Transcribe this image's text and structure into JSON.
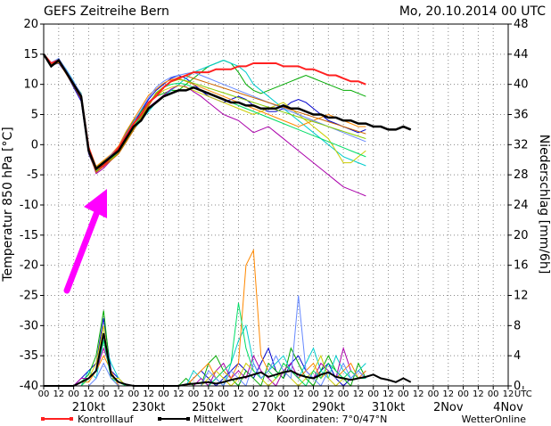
{
  "chart_data": {
    "type": "line",
    "title": "GEFS Zeitreihe Bern",
    "date_label": "Mo, 20.10.2014 00 UTC",
    "ylabel_left": "Temperatur 850 hPa [°C]",
    "ylabel_right": "Niederschlag [mm/6h]",
    "ylim_left": [
      -40,
      20
    ],
    "ylim_right": [
      0,
      48
    ],
    "yticks_left": [
      20,
      15,
      10,
      5,
      0,
      -5,
      -10,
      -15,
      -20,
      -25,
      -30,
      -35,
      -40
    ],
    "yticks_right": [
      48,
      44,
      40,
      36,
      32,
      28,
      24,
      20,
      16,
      12,
      8,
      4,
      0
    ],
    "x_step_hours": 6,
    "x_range_steps": [
      0,
      62
    ],
    "x_hour_labels": [
      "00",
      "12",
      "00",
      "12",
      "00",
      "12",
      "00",
      "12",
      "00",
      "12",
      "00",
      "12",
      "00",
      "12",
      "00",
      "12",
      "00",
      "12",
      "00",
      "12",
      "00",
      "12",
      "00",
      "12",
      "00",
      "12",
      "00",
      "12",
      "00",
      "12",
      "00",
      "12",
      "UTC"
    ],
    "x_date_labels": [
      {
        "text": "210kt",
        "step": 6
      },
      {
        "text": "230kt",
        "step": 14
      },
      {
        "text": "250kt",
        "step": 22
      },
      {
        "text": "270kt",
        "step": 30
      },
      {
        "text": "290kt",
        "step": 38
      },
      {
        "text": "310kt",
        "step": 46
      },
      {
        "text": "2Nov",
        "step": 54
      },
      {
        "text": "4Nov",
        "step": 62
      }
    ],
    "legend": {
      "control_label": "Kontrolllauf",
      "control_color": "#ff2020",
      "mean_label": "Mittelwert",
      "mean_color": "#000000",
      "coords_label": "Koordinaten: 7°0/47°N",
      "brand": "WetterOnline"
    },
    "annotation_arrow_color": "#ff00ff",
    "ensemble_colors": [
      "#ff2020",
      "#0000cc",
      "#00aa00",
      "#00cccc",
      "#aa00aa",
      "#cccc00",
      "#ff8800",
      "#00dd66",
      "#6688ff",
      "#88cc00",
      "#cc6600",
      "#008888",
      "#ff66cc",
      "#999900",
      "#3399ff",
      "#66cc33",
      "#996633",
      "#cc00cc",
      "#33cccc",
      "#aaaa33"
    ],
    "temperature_mean": [
      15,
      13,
      14,
      12,
      10,
      8,
      -1,
      -4,
      -3,
      -2,
      -1,
      1,
      3,
      4,
      6,
      7,
      8,
      8.5,
      9,
      9,
      9.5,
      9,
      8.5,
      8,
      7.5,
      7,
      7,
      6.5,
      6.5,
      6,
      6,
      6,
      6.5,
      6,
      6,
      5.5,
      5,
      5,
      4.5,
      4.5,
      4,
      4,
      3.5,
      3.5,
      3,
      3,
      2.5,
      2.5,
      3,
      2.5
    ],
    "temperature_control": [
      15,
      13.5,
      14,
      12,
      10,
      8,
      -0.5,
      -4,
      -3.5,
      -2,
      -0.5,
      1.5,
      3.5,
      5,
      7,
      8,
      9.5,
      10.5,
      11,
      11.5,
      12,
      12,
      12,
      12.5,
      12.5,
      12.5,
      13,
      13,
      13.5,
      13.5,
      13.5,
      13.5,
      13,
      13,
      13,
      12.5,
      12.5,
      12,
      11.5,
      11.5,
      11,
      10.5,
      10.5,
      10
    ],
    "temperature_members": [
      [
        15,
        13.2,
        13.5,
        11.8,
        9.5,
        7.2,
        -1.5,
        -4.5,
        -3.5,
        -2.5,
        -1,
        1.5,
        3.5,
        5.5,
        7.5,
        9,
        10,
        11,
        11.5,
        11,
        10,
        9,
        8,
        7.5,
        7,
        7.5,
        8,
        7.5,
        6.5,
        6,
        5.5,
        5.5,
        6,
        7,
        7.5,
        7,
        6,
        5,
        4,
        3.5,
        3,
        2.5,
        2,
        2.5
      ],
      [
        15,
        13.5,
        14,
        12.2,
        10.2,
        8.5,
        -0.5,
        -3.8,
        -2.8,
        -1.8,
        -0.5,
        2,
        4,
        5.5,
        7,
        8,
        8.5,
        9,
        9,
        10,
        11,
        12,
        13,
        13.5,
        14,
        13.5,
        12,
        10,
        9,
        8.5,
        9,
        9.5,
        10,
        10.5,
        11,
        11.5,
        11,
        10.5,
        10,
        9.5,
        9,
        9,
        8.5,
        8
      ],
      [
        15,
        13,
        14.2,
        12.5,
        10.5,
        8,
        -1.2,
        -4.2,
        -3.2,
        -2.2,
        -1.2,
        0.5,
        2.5,
        4,
        5.5,
        7,
        8,
        9,
        10,
        11,
        12,
        12.5,
        13,
        13.5,
        14,
        13.5,
        13,
        12,
        10,
        9,
        8,
        7,
        6,
        5,
        4,
        3,
        2,
        1,
        0,
        -1,
        -2,
        -2.5,
        -3,
        -3.5
      ],
      [
        15,
        13.3,
        13.8,
        11.9,
        9.8,
        7.5,
        -1,
        -4.8,
        -3.9,
        -2.6,
        -1.3,
        0.8,
        2.8,
        4.8,
        6.2,
        7.2,
        8.2,
        9.2,
        9.8,
        9.6,
        8.8,
        8,
        7,
        6,
        5,
        4.5,
        4,
        3,
        2,
        2.5,
        3,
        2,
        1,
        0,
        -1,
        -2,
        -3,
        -4,
        -5,
        -6,
        -7,
        -7.5,
        -8,
        -8.5
      ],
      [
        15,
        13.1,
        13.6,
        12.1,
        9.9,
        7.9,
        -0.8,
        -4.1,
        -3.1,
        -1.9,
        -0.6,
        1.2,
        3.2,
        5.2,
        6.8,
        8,
        9,
        9.5,
        9.8,
        9.5,
        9,
        8.5,
        8,
        7.5,
        7,
        6.5,
        6,
        5.5,
        5,
        5.5,
        6,
        6.5,
        7,
        6,
        5,
        4,
        3,
        2,
        1,
        -1,
        -3,
        -3,
        -2,
        -1
      ],
      [
        15,
        13.4,
        14.1,
        12.3,
        10.3,
        8.2,
        -0.3,
        -3.6,
        -2.6,
        -1.6,
        -0.2,
        2.2,
        4.2,
        6.2,
        8.2,
        9.2,
        10.2,
        10.8,
        11,
        10.5,
        10,
        9.5,
        9,
        8.5,
        8,
        7.5,
        7,
        6.5,
        6,
        5.5,
        5,
        4.5,
        4,
        3.5,
        3,
        3.5,
        4,
        4.5,
        5,
        4.5,
        4,
        3.5,
        3,
        3
      ],
      [
        15,
        13.2,
        13.9,
        12,
        10,
        8.1,
        -0.9,
        -4.3,
        -3.3,
        -2.3,
        -1.1,
        0.9,
        2.9,
        4.9,
        6.9,
        8.5,
        9.5,
        10,
        10.2,
        10,
        9.5,
        9,
        8.5,
        8,
        7.5,
        7,
        6.5,
        6,
        5.5,
        5,
        4.5,
        4,
        3.5,
        3,
        2.5,
        2,
        1.5,
        1,
        0.5,
        0,
        -0.5,
        -1,
        -1.5,
        -2
      ],
      [
        15,
        13.6,
        14.3,
        12.4,
        10.4,
        8.4,
        -0.6,
        -3.9,
        -2.9,
        -1.7,
        -0.4,
        1.8,
        3.8,
        5.8,
        7.8,
        9.5,
        10.5,
        11.2,
        11.5,
        11.8,
        12,
        11.5,
        11,
        10.5,
        10,
        9.5,
        9,
        8.5,
        8,
        7.5,
        7,
        6.5,
        6,
        5.5,
        5,
        4.5,
        4,
        3.5,
        3,
        2.5,
        2,
        1.5,
        1,
        0.5
      ],
      [
        15,
        13.3,
        14,
        12.1,
        10.1,
        7.8,
        -1.1,
        -4.4,
        -3.4,
        -2.4,
        -1.4,
        0.6,
        2.6,
        4.6,
        6.6,
        8.6,
        9.6,
        10.4,
        10.8,
        10.6,
        10.2,
        9.8,
        9.4,
        9,
        8.6,
        8.2,
        7.8,
        7.4,
        7,
        6.6,
        6.2,
        5.8,
        5.4,
        5,
        4.6,
        4.2,
        3.8,
        3.4,
        3,
        2.6,
        2.2,
        1.8,
        1.4,
        1
      ],
      [
        15,
        13,
        13.7,
        11.7,
        9.7,
        7.6,
        -1.3,
        -4.6,
        -3.6,
        -2.6,
        -1.5,
        0.4,
        2.4,
        4.4,
        6.4,
        8.4,
        9.4,
        10.6,
        11.2,
        11.4,
        11,
        10.6,
        10.2,
        9.8,
        9.4,
        9,
        8.6,
        8.2,
        7.8,
        7.4,
        7,
        6.6,
        6.2,
        5.8,
        5.4,
        5,
        4.6,
        4.2,
        3.8,
        3.4,
        3,
        2.6,
        2.2,
        1.8
      ]
    ],
    "precip_mean": [
      0,
      0,
      0,
      0,
      0,
      0.5,
      1,
      2,
      7,
      1.5,
      0.5,
      0.2,
      0,
      0,
      0,
      0,
      0,
      0,
      0,
      0.2,
      0.3,
      0.4,
      0.5,
      0.3,
      0.5,
      0.8,
      1,
      1.2,
      1.5,
      1.8,
      1.2,
      1.5,
      1.8,
      2,
      1.5,
      1.2,
      1,
      1.5,
      1.8,
      1.2,
      1,
      0.8,
      1,
      1.2,
      1.5,
      1,
      0.8,
      0.5,
      1,
      0.5
    ],
    "precip_members": [
      [
        0,
        0,
        0,
        0,
        0,
        1,
        2,
        3,
        9,
        2,
        1,
        0,
        0,
        0,
        0,
        0,
        0,
        0,
        0,
        0,
        1,
        2,
        1,
        0,
        1,
        2,
        3,
        2,
        1,
        3,
        5,
        2,
        1,
        3,
        4,
        2,
        1,
        2,
        3,
        1,
        0,
        1,
        2,
        1
      ],
      [
        0,
        0,
        0,
        0,
        0,
        0.5,
        1.5,
        4,
        10,
        1,
        0,
        0,
        0,
        0,
        0,
        0,
        0,
        0,
        0,
        1,
        0,
        0,
        3,
        4,
        2,
        1,
        0,
        2,
        1,
        0,
        3,
        2,
        1,
        5,
        3,
        1,
        0,
        2,
        4,
        2,
        1,
        0,
        3,
        1
      ],
      [
        0,
        0,
        0,
        0,
        0,
        0,
        2,
        1,
        6,
        3,
        1,
        0,
        0,
        0,
        0,
        0,
        0,
        0,
        0,
        0,
        2,
        1,
        0,
        1,
        0,
        3,
        6,
        8,
        3,
        1,
        2,
        3,
        4,
        2,
        1,
        3,
        5,
        2,
        1,
        4,
        2,
        1,
        2,
        3
      ],
      [
        0,
        0,
        0,
        0,
        0,
        1,
        1,
        2,
        5,
        2,
        0,
        0,
        0,
        0,
        0,
        0,
        0,
        0,
        0,
        0,
        0,
        1,
        0,
        2,
        3,
        1,
        2,
        1,
        4,
        2,
        1,
        0,
        2,
        3,
        1,
        2,
        1,
        3,
        2,
        1,
        5,
        2,
        1,
        2
      ],
      [
        0,
        0,
        0,
        0,
        0,
        0,
        1,
        3,
        8,
        1,
        1,
        0,
        0,
        0,
        0,
        0,
        0,
        0,
        0,
        0,
        0,
        0,
        1,
        2,
        1,
        0,
        1,
        3,
        2,
        1,
        0,
        1,
        2,
        1,
        0,
        1,
        2,
        4,
        1,
        0,
        1,
        2,
        1,
        1
      ],
      [
        0,
        0,
        0,
        0,
        0,
        0.5,
        0.5,
        2,
        4,
        2,
        0,
        0,
        0,
        0,
        0,
        0,
        0,
        0,
        0,
        0,
        1,
        2,
        3,
        1,
        2,
        1,
        3,
        16,
        18,
        4,
        2,
        1,
        3,
        2,
        1,
        2,
        3,
        1,
        2,
        1,
        2,
        3,
        1,
        2
      ],
      [
        0,
        0,
        0,
        0,
        0,
        0,
        1,
        2,
        6,
        1,
        0.5,
        0,
        0,
        0,
        0,
        0,
        0,
        0,
        0,
        0,
        0,
        0,
        0,
        1,
        2,
        3,
        11,
        5,
        2,
        1,
        2,
        1,
        3,
        2,
        1,
        0,
        2,
        1,
        3,
        2,
        1,
        2,
        1,
        1
      ],
      [
        0,
        0,
        0,
        0,
        0,
        0,
        0,
        1,
        3,
        1,
        0,
        0,
        0,
        0,
        0,
        0,
        0,
        0,
        0,
        0,
        0,
        0,
        2,
        1,
        0,
        2,
        1,
        0,
        3,
        1,
        2,
        4,
        2,
        1,
        12,
        2,
        1,
        0,
        2,
        1,
        3,
        1,
        2,
        1
      ]
    ]
  }
}
